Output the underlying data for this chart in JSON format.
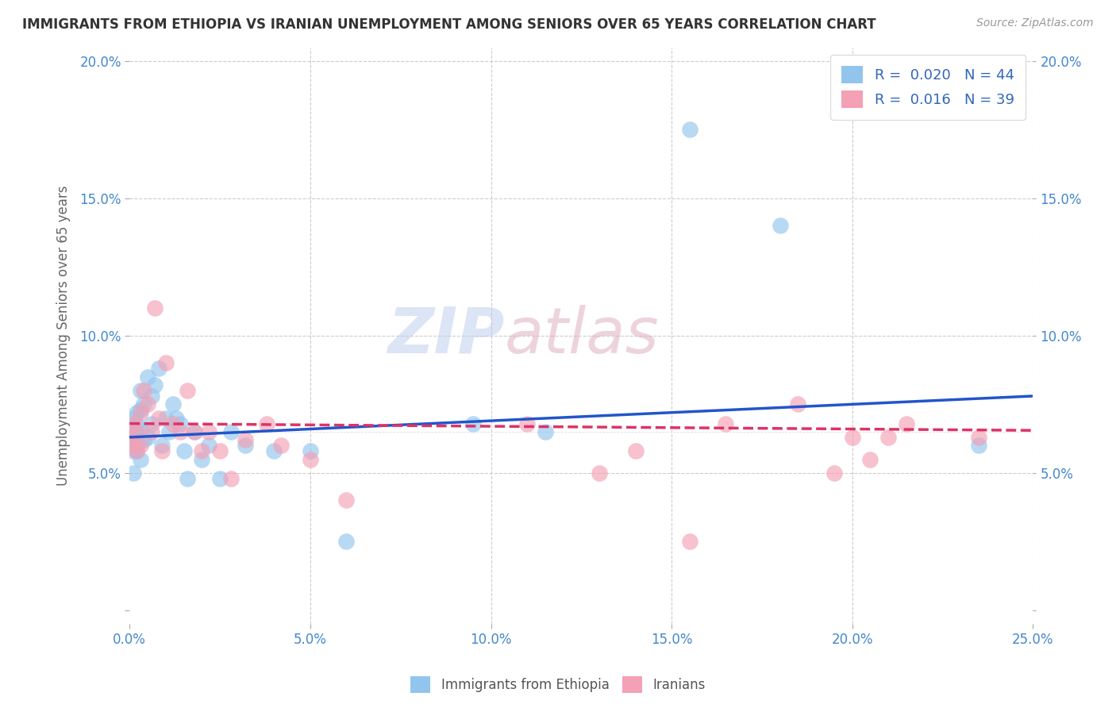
{
  "title": "IMMIGRANTS FROM ETHIOPIA VS IRANIAN UNEMPLOYMENT AMONG SENIORS OVER 65 YEARS CORRELATION CHART",
  "source": "Source: ZipAtlas.com",
  "ylabel": "Unemployment Among Seniors over 65 years",
  "xlim": [
    0.0,
    0.25
  ],
  "ylim": [
    -0.005,
    0.205
  ],
  "xticks": [
    0.0,
    0.05,
    0.1,
    0.15,
    0.2,
    0.25
  ],
  "yticks": [
    0.0,
    0.05,
    0.1,
    0.15,
    0.2
  ],
  "xtick_labels": [
    "0.0%",
    "5.0%",
    "10.0%",
    "15.0%",
    "20.0%",
    "25.0%"
  ],
  "ytick_labels": [
    "",
    "5.0%",
    "10.0%",
    "15.0%",
    "20.0%"
  ],
  "right_ytick_labels": [
    "",
    "5.0%",
    "10.0%",
    "15.0%",
    "20.0%"
  ],
  "legend_labels": [
    "Immigrants from Ethiopia",
    "Iranians"
  ],
  "blue_color": "#92C5ED",
  "pink_color": "#F4A0B5",
  "blue_line_color": "#2255CC",
  "pink_line_color": "#DD3366",
  "R_blue": 0.02,
  "N_blue": 44,
  "R_pink": 0.016,
  "N_pink": 39,
  "blue_x": [
    0.0,
    0.001,
    0.001,
    0.001,
    0.001,
    0.002,
    0.002,
    0.002,
    0.002,
    0.002,
    0.003,
    0.003,
    0.003,
    0.003,
    0.004,
    0.004,
    0.005,
    0.005,
    0.006,
    0.006,
    0.007,
    0.008,
    0.009,
    0.01,
    0.011,
    0.012,
    0.013,
    0.014,
    0.015,
    0.016,
    0.018,
    0.02,
    0.022,
    0.025,
    0.028,
    0.032,
    0.04,
    0.05,
    0.06,
    0.095,
    0.115,
    0.155,
    0.18,
    0.235
  ],
  "blue_y": [
    0.065,
    0.07,
    0.063,
    0.058,
    0.05,
    0.068,
    0.072,
    0.065,
    0.058,
    0.06,
    0.08,
    0.073,
    0.066,
    0.055,
    0.075,
    0.062,
    0.085,
    0.063,
    0.078,
    0.068,
    0.082,
    0.088,
    0.06,
    0.07,
    0.065,
    0.075,
    0.07,
    0.068,
    0.058,
    0.048,
    0.065,
    0.055,
    0.06,
    0.048,
    0.065,
    0.06,
    0.058,
    0.058,
    0.025,
    0.068,
    0.065,
    0.175,
    0.14,
    0.06
  ],
  "pink_x": [
    0.0,
    0.001,
    0.001,
    0.002,
    0.002,
    0.003,
    0.003,
    0.004,
    0.005,
    0.006,
    0.007,
    0.008,
    0.009,
    0.01,
    0.012,
    0.014,
    0.016,
    0.018,
    0.02,
    0.022,
    0.025,
    0.028,
    0.032,
    0.038,
    0.042,
    0.05,
    0.06,
    0.11,
    0.13,
    0.14,
    0.155,
    0.165,
    0.185,
    0.195,
    0.2,
    0.205,
    0.21,
    0.215,
    0.235
  ],
  "pink_y": [
    0.063,
    0.068,
    0.06,
    0.058,
    0.065,
    0.072,
    0.06,
    0.08,
    0.075,
    0.065,
    0.11,
    0.07,
    0.058,
    0.09,
    0.068,
    0.065,
    0.08,
    0.065,
    0.058,
    0.065,
    0.058,
    0.048,
    0.062,
    0.068,
    0.06,
    0.055,
    0.04,
    0.068,
    0.05,
    0.058,
    0.025,
    0.068,
    0.075,
    0.05,
    0.063,
    0.055,
    0.063,
    0.068,
    0.063
  ],
  "background_color": "#FFFFFF",
  "grid_color": "#CCCCCC",
  "watermark_blue": "ZIP",
  "watermark_pink": "atlas",
  "watermark_color_blue": "#BBCCEE",
  "watermark_color_pink": "#DDAABB"
}
